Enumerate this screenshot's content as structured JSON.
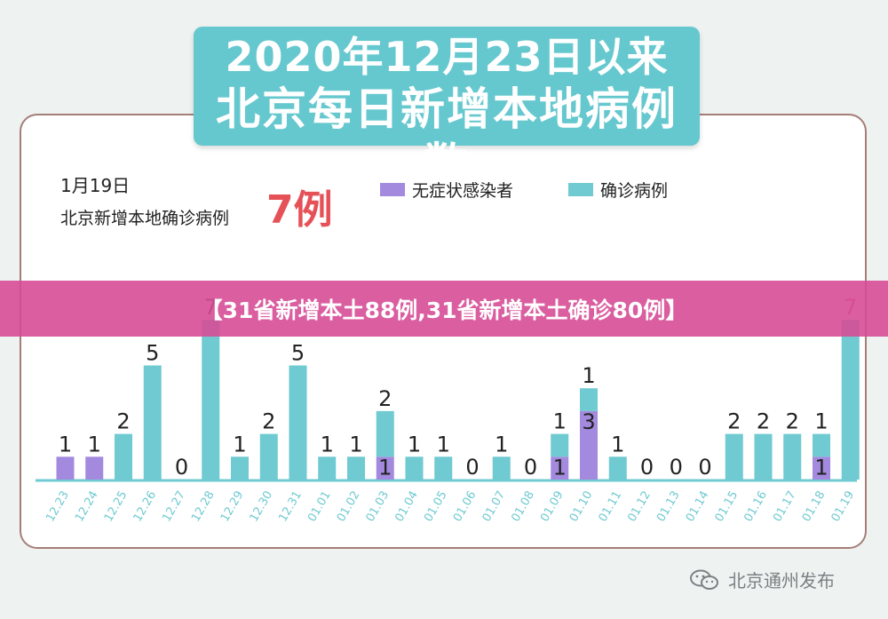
{
  "title": {
    "line1": "2020年12月23日以来",
    "line2": "北京每日新增本地病例数"
  },
  "summary": {
    "date": "1月19日",
    "label": "北京新增本地确诊病例",
    "value": "7例"
  },
  "banner": "【31省新增本土88例,31省新增本土确诊80例】",
  "watermark": "北京通州发布",
  "colors": {
    "asymptomatic": "#a38ade",
    "confirmed": "#6fcad1",
    "highlight": "#e55157"
  },
  "chart_data": {
    "type": "bar",
    "stacked": true,
    "categories": [
      "12.23",
      "12.24",
      "12.25",
      "12.26",
      "12.27",
      "12.28",
      "12.29",
      "12.30",
      "12.31",
      "01.01",
      "01.02",
      "01.03",
      "01.04",
      "01.05",
      "01.06",
      "01.07",
      "01.08",
      "01.09",
      "01.10",
      "01.11",
      "01.12",
      "01.13",
      "01.14",
      "01.15",
      "01.16",
      "01.17",
      "01.18",
      "01.19"
    ],
    "series": [
      {
        "name": "无症状感染者",
        "values": [
          1,
          1,
          0,
          0,
          0,
          0,
          0,
          0,
          0,
          0,
          0,
          1,
          0,
          0,
          0,
          0,
          0,
          1,
          3,
          0,
          0,
          0,
          0,
          0,
          0,
          0,
          1,
          0
        ]
      },
      {
        "name": "确诊病例",
        "values": [
          0,
          0,
          2,
          5,
          0,
          7,
          1,
          2,
          5,
          1,
          1,
          2,
          1,
          1,
          0,
          1,
          0,
          1,
          1,
          1,
          0,
          0,
          0,
          2,
          2,
          2,
          1,
          7
        ]
      }
    ],
    "totals": [
      1,
      1,
      2,
      5,
      0,
      7,
      1,
      2,
      5,
      1,
      1,
      3,
      1,
      1,
      0,
      1,
      0,
      2,
      4,
      1,
      0,
      0,
      0,
      2,
      2,
      2,
      2,
      7
    ],
    "highlight_last": true,
    "legend": "top"
  }
}
